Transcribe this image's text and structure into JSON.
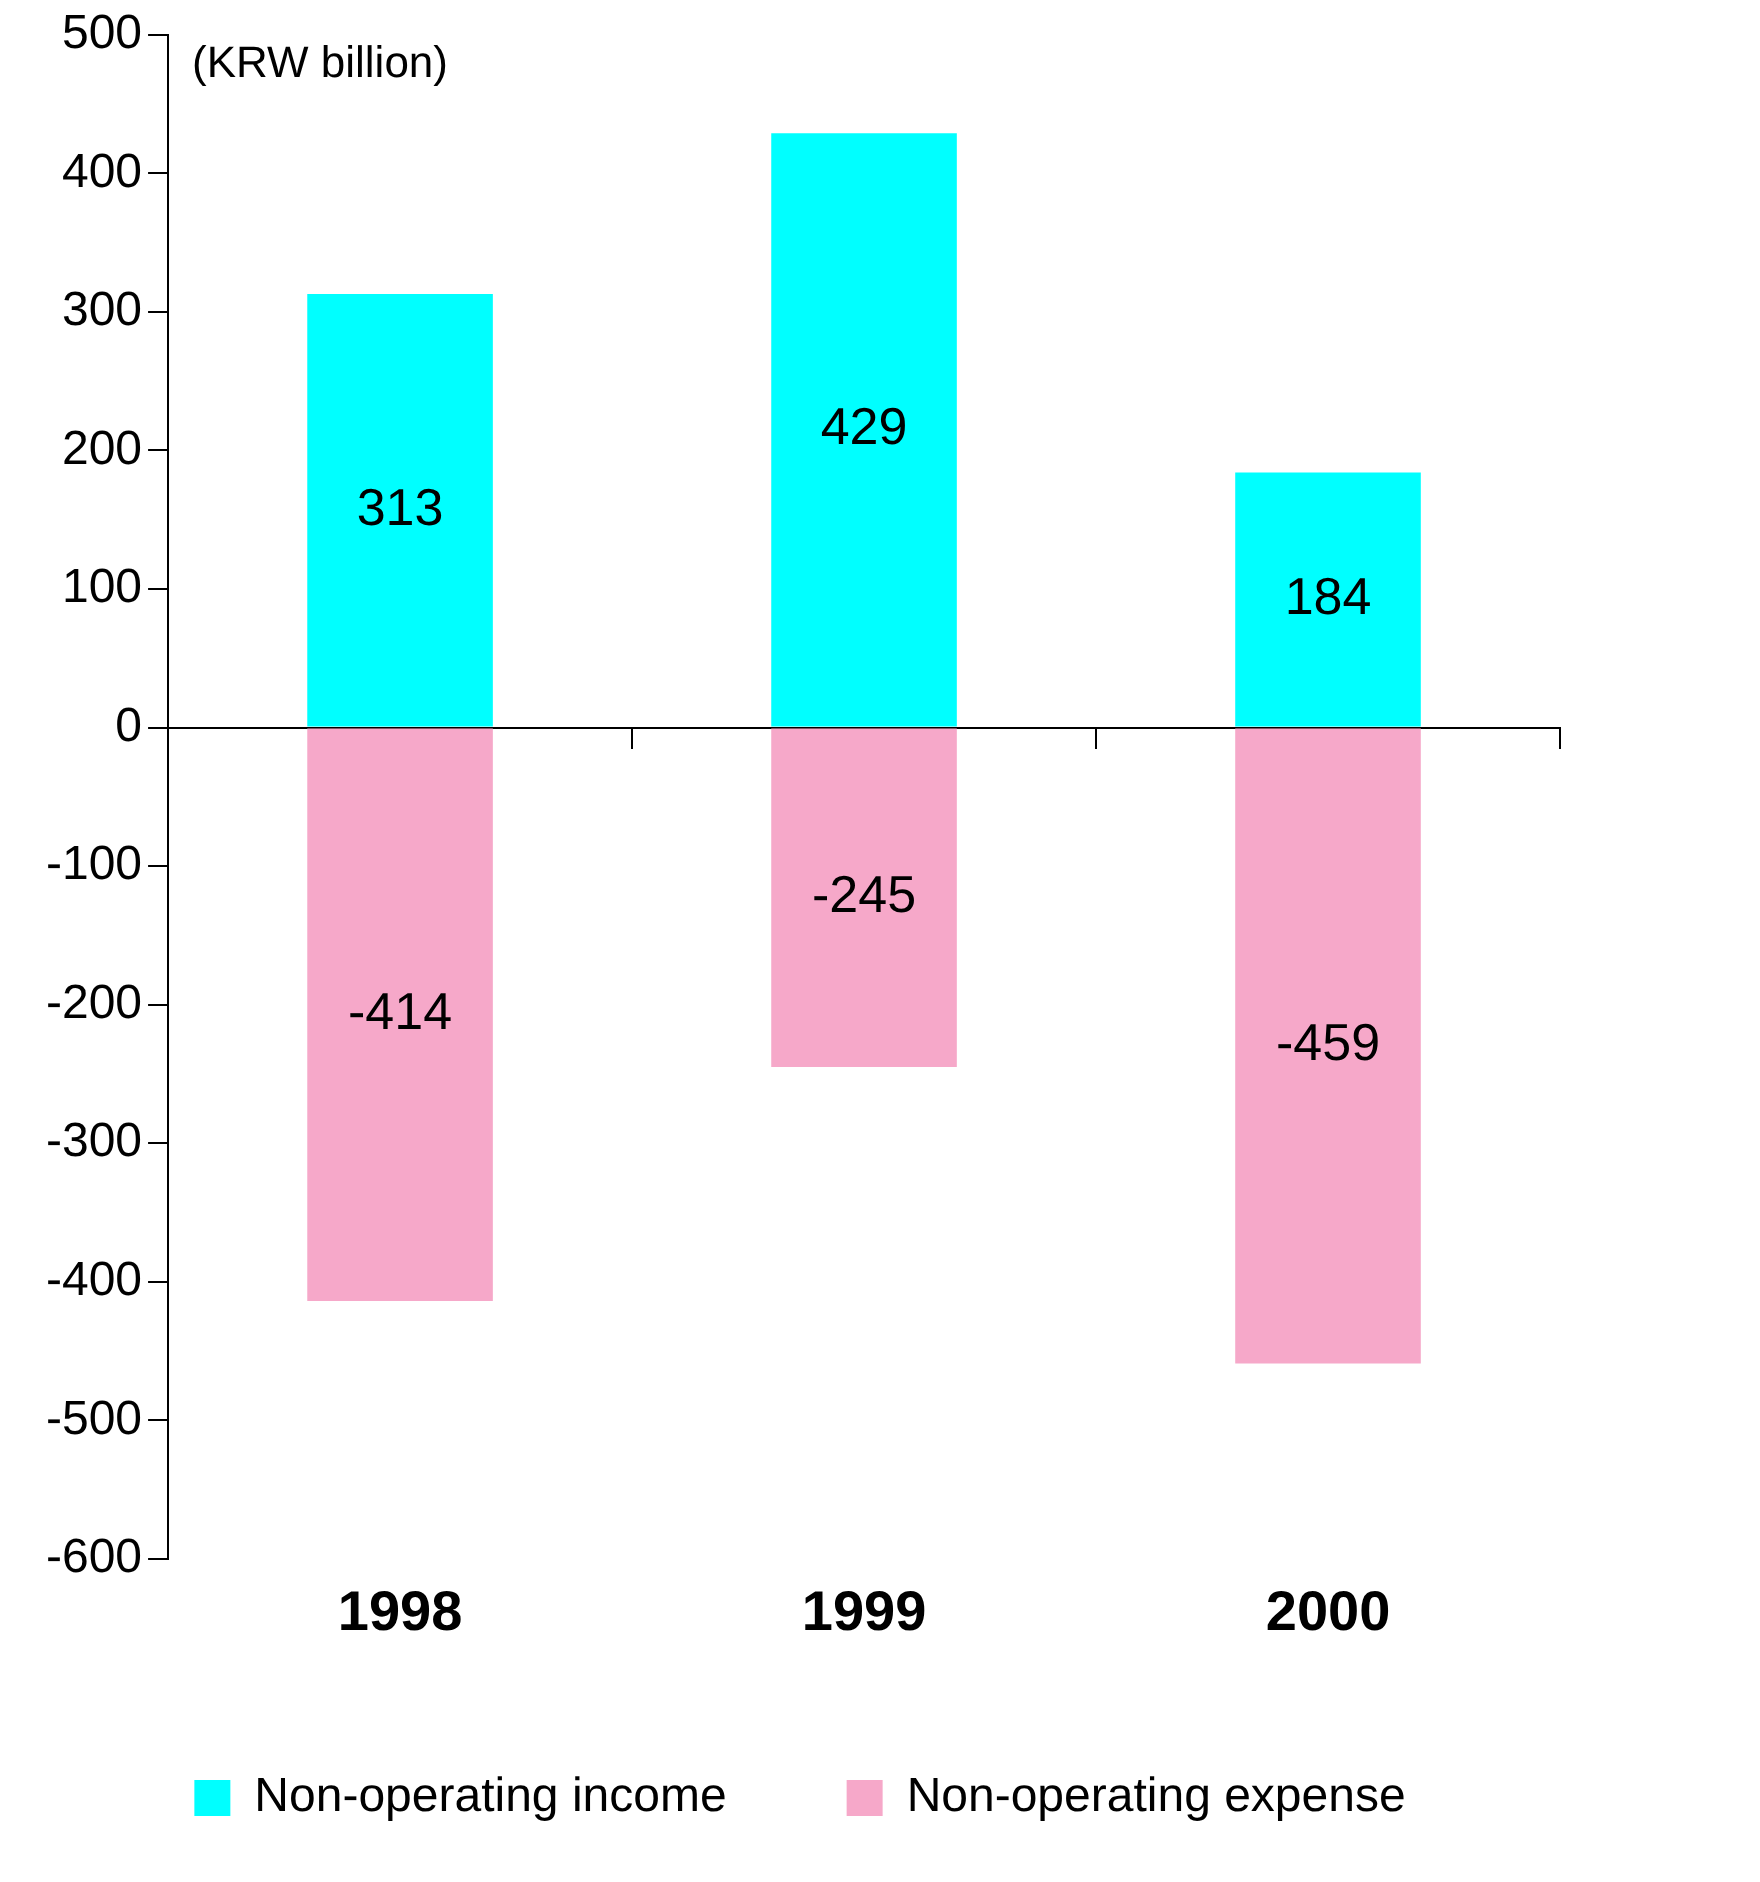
{
  "chart_data": {
    "type": "bar",
    "stacked": true,
    "categories": [
      "1998",
      "1999",
      "2000"
    ],
    "series": [
      {
        "name": "Non-operating income",
        "color": "#00ffff",
        "values": [
          313,
          429,
          184
        ]
      },
      {
        "name": "Non-operating expense",
        "color": "#f6a8c9",
        "values": [
          -414,
          -245,
          -459
        ]
      }
    ],
    "ylim": [
      -600,
      500
    ],
    "yticks": [
      -600,
      -500,
      -400,
      -300,
      -200,
      -100,
      0,
      100,
      200,
      300,
      400,
      500
    ],
    "data_labels": true,
    "legend": "bottom",
    "annotations": [
      "(KRW billion)"
    ]
  }
}
